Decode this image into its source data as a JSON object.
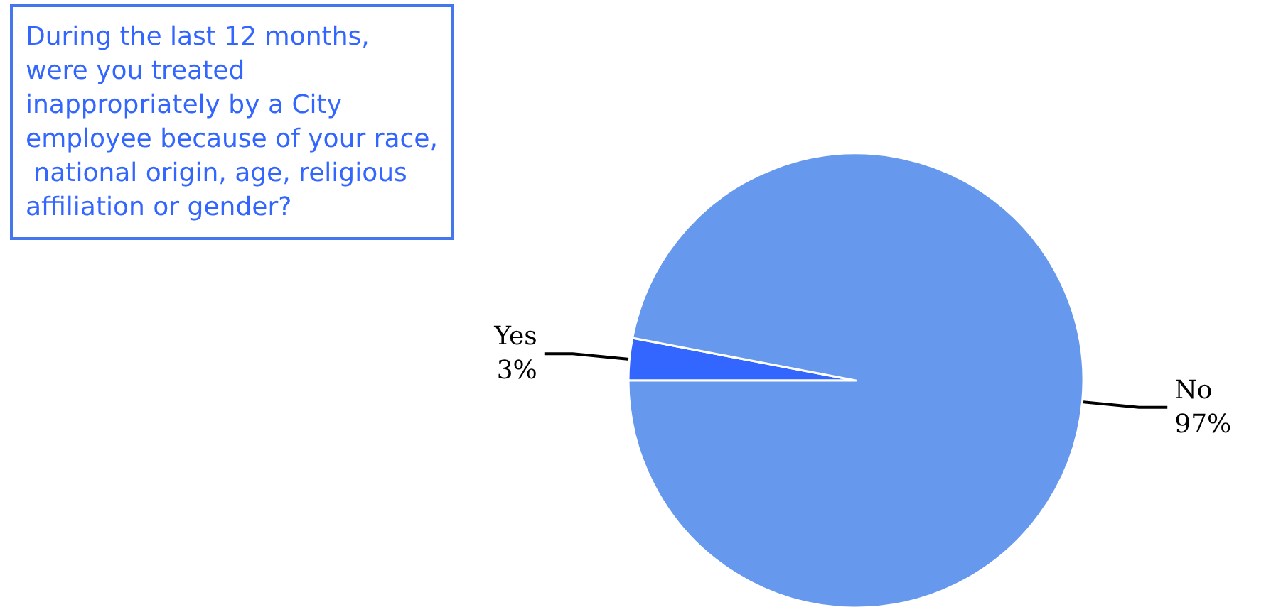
{
  "chart_data": {
    "type": "pie",
    "title": "During the last 12 months, were you treated inappropriately by a City employee because of your race, national origin, age, religious affiliation or gender?",
    "categories": [
      "Yes",
      "No"
    ],
    "values": [
      3,
      97
    ],
    "value_labels": [
      "3%",
      "97%"
    ],
    "colors": [
      "#3366ff",
      "#6699ee"
    ],
    "legend": false
  }
}
